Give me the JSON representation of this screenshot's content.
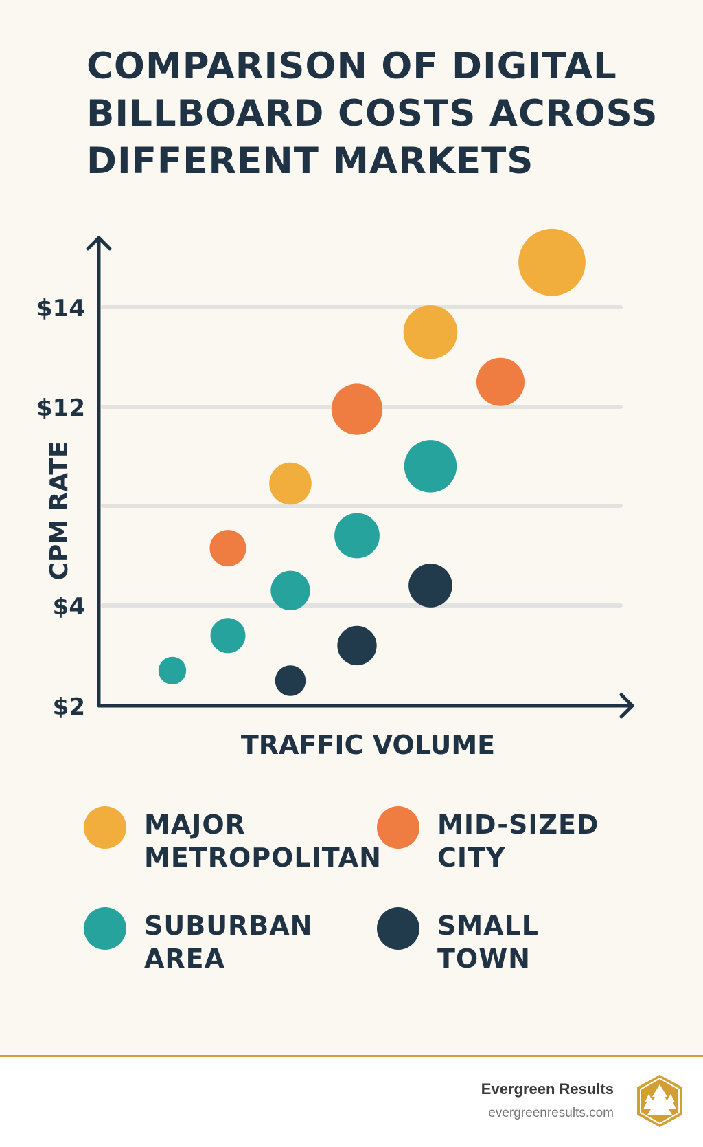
{
  "title_lines": [
    "COMPARISON OF DIGITAL",
    "BILLBOARD COSTS ACROSS",
    "DIFFERENT MARKETS"
  ],
  "chart_data": {
    "type": "scatter",
    "title": "COMPARISON OF DIGITAL BILLBOARD COSTS ACROSS DIFFERENT MARKETS",
    "xlabel": "TRAFFIC VOLUME",
    "ylabel": "CPM RATE",
    "y_ticks": [
      {
        "value": 2,
        "label": "$2"
      },
      {
        "value": 4,
        "label": "$4"
      },
      {
        "value": 8,
        "label": ""
      },
      {
        "value": 12,
        "label": "$12"
      },
      {
        "value": 14,
        "label": "$14"
      }
    ],
    "x_ticks": [],
    "grid": true,
    "legend_position": "bottom",
    "series": [
      {
        "name": "MAJOR METROPOLITAN",
        "name_lines": [
          "MAJOR",
          "METROPOLITAN"
        ],
        "color": "#f2ae3d",
        "points": [
          {
            "x": 3,
            "y": 8.9,
            "size": 29
          },
          {
            "x": 5,
            "y": 13.5,
            "size": 37
          },
          {
            "x": 7,
            "y": 14.9,
            "size": 46
          }
        ]
      },
      {
        "name": "MID-SIZED CITY",
        "name_lines": [
          "MID-SIZED",
          "CITY"
        ],
        "color": "#ef7d42",
        "points": [
          {
            "x": 2,
            "y": 6.3,
            "size": 25
          },
          {
            "x": 4,
            "y": 11.9,
            "size": 35
          },
          {
            "x": 6,
            "y": 12.5,
            "size": 33
          }
        ]
      },
      {
        "name": "SUBURBAN AREA",
        "name_lines": [
          "SUBURBAN",
          "AREA"
        ],
        "color": "#26a39d",
        "points": [
          {
            "x": 1,
            "y": 2.7,
            "size": 19
          },
          {
            "x": 2,
            "y": 3.4,
            "size": 24
          },
          {
            "x": 3,
            "y": 4.6,
            "size": 27
          },
          {
            "x": 4,
            "y": 6.8,
            "size": 31
          },
          {
            "x": 5,
            "y": 9.6,
            "size": 36
          }
        ]
      },
      {
        "name": "SMALL TOWN",
        "name_lines": [
          "SMALL",
          "TOWN"
        ],
        "color": "#213a4c",
        "points": [
          {
            "x": 3,
            "y": 2.5,
            "size": 21
          },
          {
            "x": 4,
            "y": 3.2,
            "size": 27
          },
          {
            "x": 5,
            "y": 4.8,
            "size": 30
          }
        ]
      }
    ]
  },
  "footer": {
    "brand_name": "Evergreen Results",
    "brand_url": "evergreenresults.com",
    "accent_color": "#d39f33"
  }
}
